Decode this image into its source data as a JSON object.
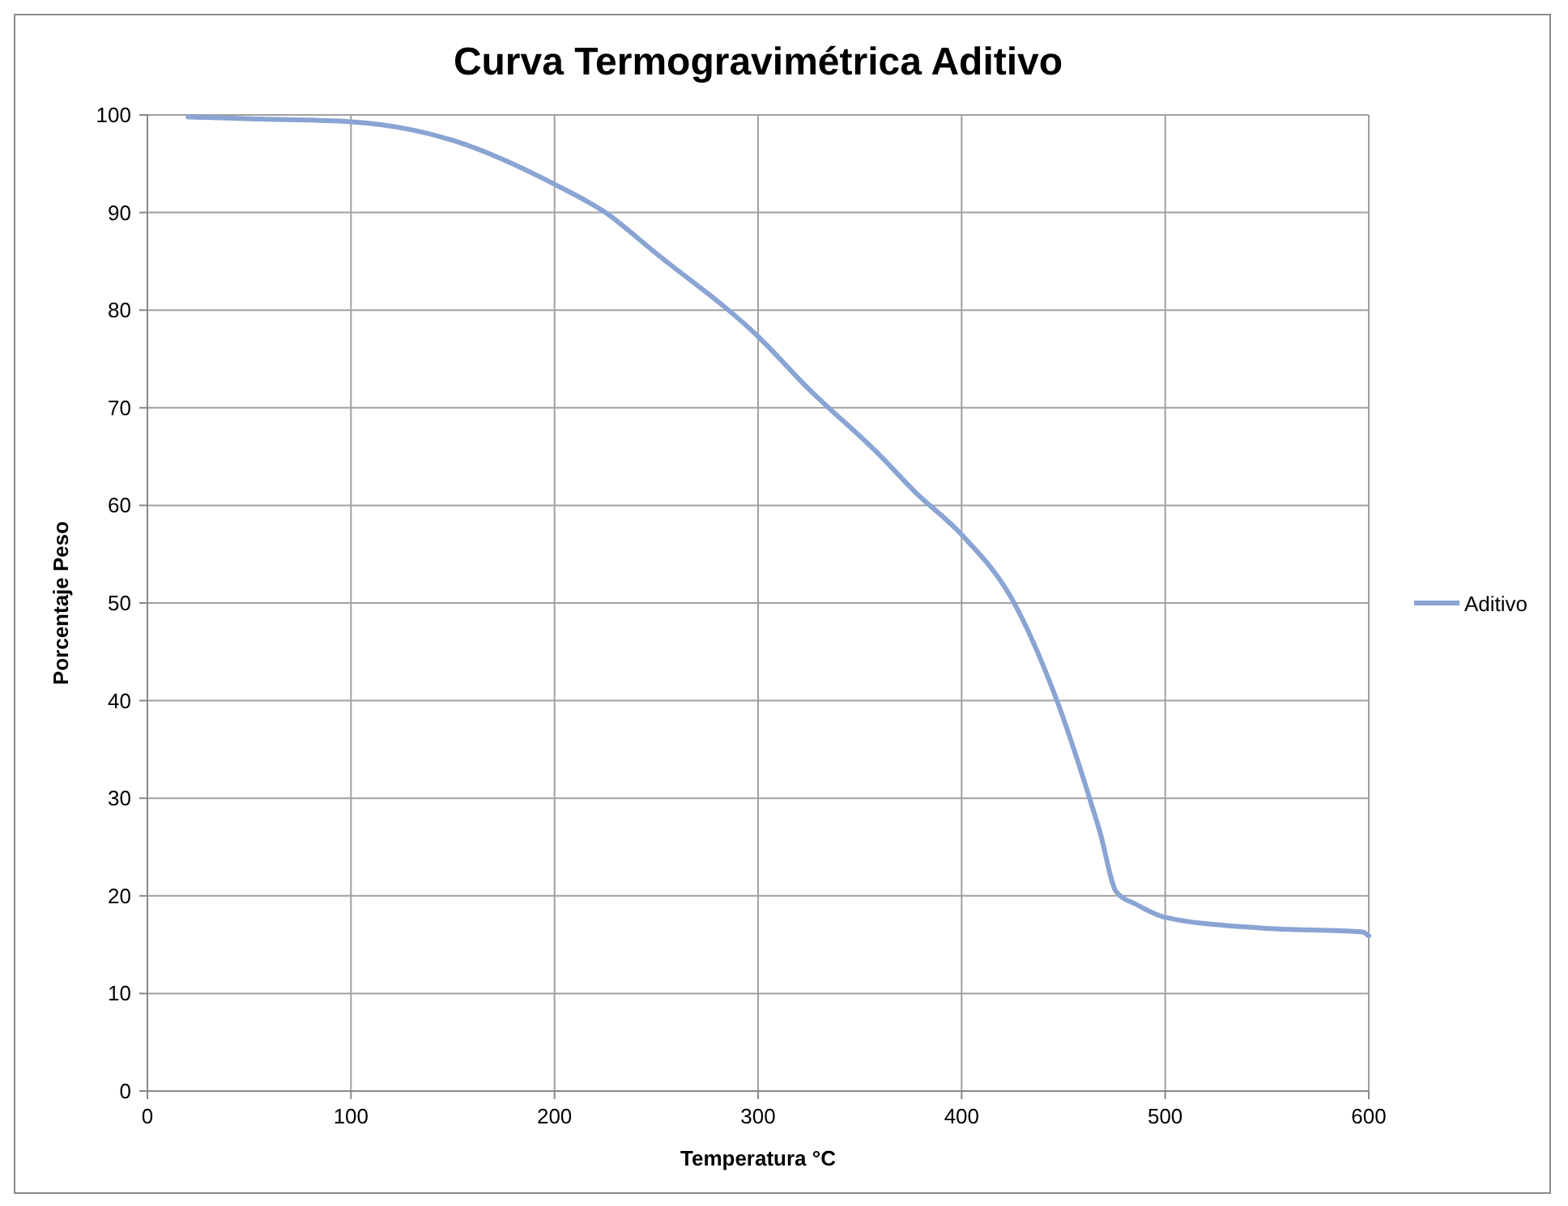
{
  "chart_data": {
    "type": "line",
    "title": "Curva Termogravimétrica Aditivo",
    "xlabel": "Temperatura °C",
    "ylabel": "Porcentaje Peso",
    "xlim": [
      0,
      600
    ],
    "xticks": [
      0,
      100,
      200,
      300,
      400,
      500,
      600
    ],
    "ylim": [
      0,
      100
    ],
    "yticks": [
      0,
      10,
      20,
      30,
      40,
      50,
      60,
      70,
      80,
      90,
      100
    ],
    "grid": true,
    "legend": "right",
    "marker": "none",
    "line_style": "solid",
    "series": [
      {
        "name": "Aditivo",
        "color": "#8aa4d3",
        "x": [
          20,
          50,
          100,
          150,
          200,
          225,
          250,
          300,
          325,
          359,
          377,
          400,
          425,
          447,
          463,
          468,
          476,
          486,
          500,
          547,
          597,
          600
        ],
        "values": [
          99.8,
          99.6,
          99.3,
          97.4,
          92.9,
          90,
          85.8,
          77.3,
          71.9,
          65.3,
          61.4,
          57,
          50.3,
          39.9,
          29.9,
          26.5,
          20.4,
          19.1,
          17.8,
          16.7,
          16.3,
          15.9
        ]
      }
    ]
  }
}
